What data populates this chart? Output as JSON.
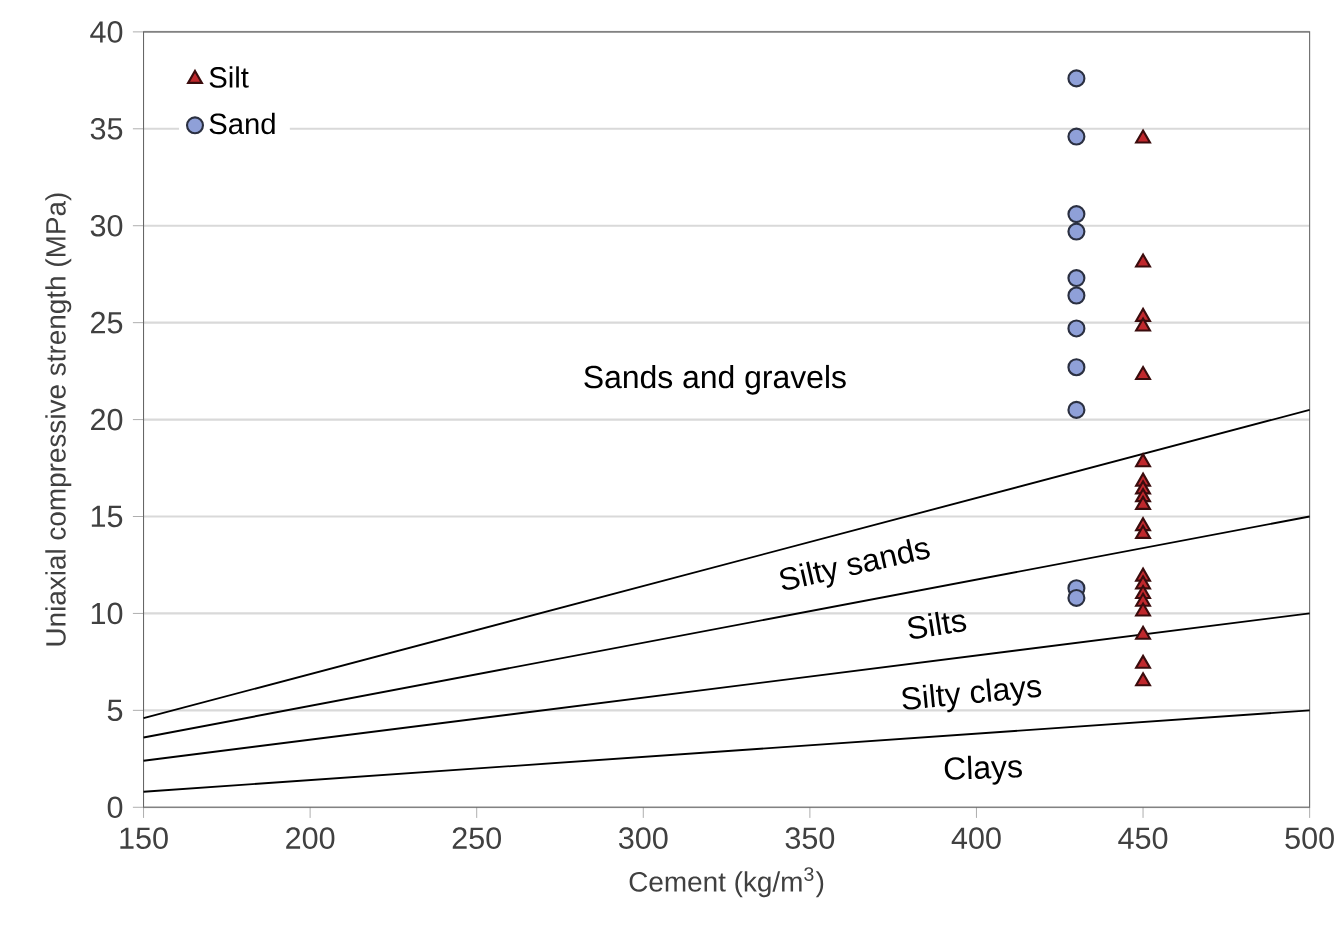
{
  "chart_data": {
    "type": "scatter",
    "xlabel": "Cement (kg/m$^{3}$)",
    "ylabel": "Uniaxial compressive strength (MPa)",
    "xlim": [
      150,
      500
    ],
    "ylim": [
      0,
      40
    ],
    "xticks": [
      150,
      200,
      250,
      300,
      350,
      400,
      450,
      500
    ],
    "yticks": [
      0,
      5,
      10,
      15,
      20,
      25,
      30,
      35,
      40
    ],
    "grid": "y",
    "legend": "top left",
    "series": [
      {
        "name": "Silt",
        "marker": "triangle",
        "color": "#c0282d",
        "x": [
          450,
          450,
          450,
          450,
          450,
          450,
          450,
          450,
          450,
          450,
          450,
          450,
          450,
          450,
          450,
          450,
          450,
          450,
          450,
          450
        ],
        "values": [
          34.5,
          28.1,
          25.3,
          24.8,
          22.3,
          17.8,
          16.8,
          16.4,
          16.0,
          15.6,
          14.5,
          14.1,
          11.9,
          11.5,
          11.0,
          10.6,
          10.1,
          8.9,
          7.4,
          6.5
        ]
      },
      {
        "name": "Sand",
        "marker": "circle",
        "color": "#8fa0d8",
        "x": [
          430,
          430,
          430,
          430,
          430,
          430,
          430,
          430,
          430,
          430,
          430
        ],
        "values": [
          37.6,
          34.6,
          30.6,
          29.7,
          27.3,
          26.4,
          24.7,
          22.7,
          20.5,
          11.3,
          10.8
        ]
      },
      {
        "type": "line",
        "marker": "none",
        "color": "#000000",
        "x": [
          150,
          500
        ],
        "values": [
          4.6,
          20.5
        ]
      },
      {
        "type": "line",
        "marker": "none",
        "color": "#000000",
        "x": [
          150,
          500
        ],
        "values": [
          3.6,
          15.0
        ]
      },
      {
        "type": "line",
        "marker": "none",
        "color": "#000000",
        "x": [
          150,
          500
        ],
        "values": [
          2.4,
          10.0
        ]
      },
      {
        "type": "line",
        "marker": "none",
        "color": "#000000",
        "x": [
          150,
          500
        ],
        "values": [
          0.8,
          5.0
        ]
      }
    ],
    "annotations": [
      "Sands and gravels",
      "Silty sands",
      "Silts",
      "Silty clays",
      "Clays"
    ]
  }
}
